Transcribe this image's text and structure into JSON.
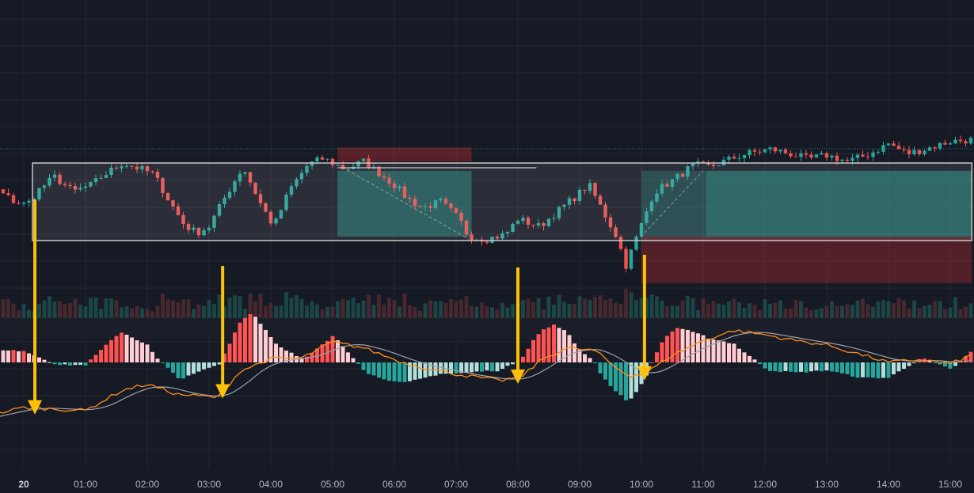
{
  "theme": {
    "background": "#161a25",
    "grid": "#222632",
    "up": "#26a69a",
    "down": "#ef5350",
    "macd_line": "#ff8c1a",
    "signal_line": "#9ba0ab",
    "arrow": "#ffc107",
    "range_box": "#c8c8c8",
    "target_zone": "#26a69a",
    "stop_zone": "#d32f2f"
  },
  "chart_data": {
    "type": "candlestick",
    "x_axis": {
      "ticks": [
        "20",
        "01:00",
        "02:00",
        "03:00",
        "04:00",
        "05:00",
        "06:00",
        "07:00",
        "08:00",
        "09:00",
        "10:00",
        "11:00",
        "12:00",
        "13:00",
        "14:00",
        "15:00"
      ],
      "tick_hours": [
        0,
        1,
        2,
        3,
        4,
        5,
        6,
        7,
        8,
        9,
        10,
        11,
        12,
        13,
        14,
        15
      ]
    },
    "range_start_hour": -1.25,
    "range_end_hour": 15.35,
    "price_anchors": [
      [
        -1.25,
        0.88
      ],
      [
        -1.05,
        0.78
      ],
      [
        -0.8,
        0.74
      ],
      [
        -0.45,
        0.66
      ],
      [
        -0.15,
        0.5
      ],
      [
        0.05,
        0.46
      ],
      [
        0.25,
        0.66
      ],
      [
        0.5,
        0.82
      ],
      [
        0.8,
        0.63
      ],
      [
        1.1,
        0.72
      ],
      [
        1.25,
        0.82
      ],
      [
        1.6,
        1.0
      ],
      [
        1.9,
        0.92
      ],
      [
        2.1,
        0.86
      ],
      [
        2.35,
        0.52
      ],
      [
        2.6,
        0.2
      ],
      [
        2.8,
        0.1
      ],
      [
        3.0,
        0.18
      ],
      [
        3.25,
        0.55
      ],
      [
        3.55,
        0.95
      ],
      [
        3.85,
        0.45
      ],
      [
        4.05,
        0.18
      ],
      [
        4.3,
        0.65
      ],
      [
        4.6,
        0.98
      ],
      [
        4.85,
        1.06
      ],
      [
        5.2,
        0.92
      ],
      [
        5.5,
        1.02
      ],
      [
        6.0,
        0.72
      ],
      [
        6.2,
        0.55
      ],
      [
        6.45,
        0.42
      ],
      [
        6.75,
        0.5
      ],
      [
        7.05,
        0.28
      ],
      [
        7.2,
        0.05
      ],
      [
        7.5,
        0.02
      ],
      [
        7.8,
        0.08
      ],
      [
        8.0,
        0.28
      ],
      [
        8.2,
        0.22
      ],
      [
        8.35,
        0.18
      ],
      [
        8.6,
        0.35
      ],
      [
        8.95,
        0.58
      ],
      [
        9.15,
        0.72
      ],
      [
        9.35,
        0.42
      ],
      [
        9.6,
        0.05
      ],
      [
        9.75,
        -0.32
      ],
      [
        9.95,
        0.1
      ],
      [
        10.2,
        0.62
      ],
      [
        10.55,
        0.8
      ],
      [
        10.85,
        0.98
      ],
      [
        11.1,
        0.95
      ],
      [
        11.4,
        1.04
      ],
      [
        11.7,
        1.12
      ],
      [
        12.1,
        1.18
      ],
      [
        12.4,
        1.12
      ],
      [
        12.7,
        1.05
      ],
      [
        13.0,
        1.1
      ],
      [
        13.35,
        1.02
      ],
      [
        13.7,
        1.12
      ],
      [
        14.0,
        1.25
      ],
      [
        14.3,
        1.12
      ],
      [
        14.6,
        1.18
      ],
      [
        15.0,
        1.28
      ],
      [
        15.35,
        1.3
      ]
    ],
    "consolidation_box": {
      "start": 0.5,
      "end": 15.35,
      "low": 0.0,
      "high": 1.0
    },
    "long_positions": [
      {
        "start": 5.08,
        "end": 7.25,
        "target_low": 0.05,
        "target_high": 0.9,
        "stop_low": 1.02,
        "stop_high": 1.2
      }
    ],
    "short_positions": [
      {
        "start": 10.0,
        "end": 15.35,
        "entry": 0.9,
        "target_low": 0.05,
        "stop_low": -0.55,
        "stop_high": 0.05
      },
      {
        "start": 11.05,
        "end": 15.35,
        "entry": 0.9,
        "target_low": 0.05
      }
    ],
    "macd_anchors": [
      [
        -1.25,
        -0.85
      ],
      [
        0.0,
        -0.62
      ],
      [
        1.0,
        -0.66
      ],
      [
        1.6,
        -0.38
      ],
      [
        2.0,
        -0.3
      ],
      [
        2.5,
        -0.44
      ],
      [
        3.15,
        -0.48
      ],
      [
        3.5,
        -0.12
      ],
      [
        4.0,
        0.05
      ],
      [
        4.5,
        0.06
      ],
      [
        5.0,
        0.28
      ],
      [
        5.5,
        0.2
      ],
      [
        6.2,
        -0.02
      ],
      [
        7.0,
        -0.16
      ],
      [
        7.7,
        -0.25
      ],
      [
        8.05,
        -0.2
      ],
      [
        8.4,
        0.05
      ],
      [
        8.8,
        0.2
      ],
      [
        9.25,
        0.16
      ],
      [
        9.6,
        -0.08
      ],
      [
        9.8,
        -0.18
      ],
      [
        10.05,
        -0.16
      ],
      [
        10.5,
        0.1
      ],
      [
        11.0,
        0.3
      ],
      [
        11.5,
        0.44
      ],
      [
        12.0,
        0.38
      ],
      [
        12.5,
        0.3
      ],
      [
        13.0,
        0.24
      ],
      [
        13.5,
        0.12
      ],
      [
        14.0,
        0.0
      ],
      [
        14.5,
        0.04
      ],
      [
        15.0,
        -0.02
      ],
      [
        15.35,
        0.1
      ]
    ],
    "arrows_at_hours": [
      0.18,
      3.22,
      8.0,
      10.05
    ]
  }
}
